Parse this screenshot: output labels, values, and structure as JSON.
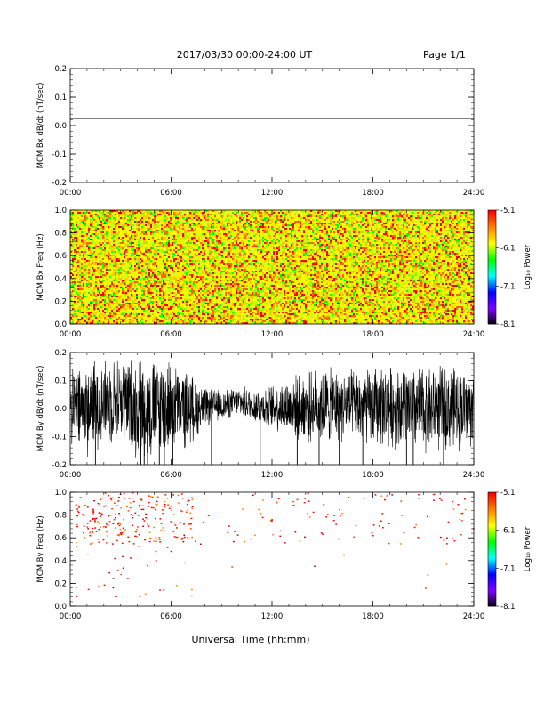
{
  "header": {
    "date_range": "2017/03/30  00:00-24:00 UT",
    "page": "Page 1/1"
  },
  "xlabel": "Universal Time (hh:mm)",
  "x_ticks": [
    "00:00",
    "06:00",
    "12:00",
    "18:00",
    "24:00"
  ],
  "colorbar": {
    "label": "Log₁₀ Power",
    "ticks": [
      "-5.1",
      "-6.1",
      "-7.1",
      "-8.1"
    ],
    "colors": [
      "#ff0000",
      "#ff8000",
      "#ffff00",
      "#00ff00",
      "#00ffff",
      "#0000ff",
      "#8000ff",
      "#000000"
    ]
  },
  "chart_data": [
    {
      "type": "line",
      "ylabel": "MCM Bx dB/dt (nT/sec)",
      "x_range": [
        "00:00",
        "24:00"
      ],
      "ylim": [
        -0.2,
        0.2
      ],
      "y_ticks": [
        "0.2",
        "0.1",
        "0.0",
        "-0.1",
        "-0.2"
      ],
      "series": [
        {
          "x": [
            "00:00",
            "24:00"
          ],
          "y": [
            0.025,
            0.025
          ]
        }
      ]
    },
    {
      "type": "heatmap",
      "ylabel": "MCM Bx Freq (Hz)",
      "x_range": [
        "00:00",
        "24:00"
      ],
      "ylim": [
        0.0,
        1.0
      ],
      "y_ticks": [
        "1.0",
        "0.8",
        "0.6",
        "0.4",
        "0.2",
        "0.0"
      ],
      "zlim": [
        -8.1,
        -5.1
      ],
      "z_typical_range": [
        -5.9,
        -5.1
      ]
    },
    {
      "type": "line",
      "ylabel": "MCM By dB/dt (nT/sec)",
      "x_range": [
        "00:00",
        "24:00"
      ],
      "ylim": [
        -0.2,
        0.2
      ],
      "y_ticks": [
        "0.2",
        "0.1",
        "0.0",
        "-0.1",
        "-0.2"
      ],
      "envelope_hourly": {
        "hours": [
          0,
          1,
          2,
          3,
          4,
          5,
          6,
          7,
          8,
          9,
          10,
          11,
          12,
          13,
          14,
          15,
          16,
          17,
          18,
          19,
          20,
          21,
          22,
          23,
          24
        ],
        "upper": [
          0.14,
          0.19,
          0.19,
          0.2,
          0.2,
          0.2,
          0.2,
          0.15,
          0.08,
          0.07,
          0.08,
          0.08,
          0.09,
          0.12,
          0.14,
          0.16,
          0.15,
          0.15,
          0.16,
          0.17,
          0.16,
          0.17,
          0.17,
          0.16,
          0.15
        ],
        "lower": [
          -0.14,
          -0.19,
          -0.14,
          -0.13,
          -0.2,
          -0.2,
          -0.17,
          -0.15,
          -0.07,
          -0.05,
          -0.03,
          -0.06,
          -0.08,
          -0.11,
          -0.13,
          -0.14,
          -0.13,
          -0.14,
          -0.15,
          -0.15,
          -0.16,
          -0.17,
          -0.17,
          -0.16,
          -0.15
        ]
      }
    },
    {
      "type": "heatmap",
      "ylabel": "MCM By Freq (Hz)",
      "x_range": [
        "00:00",
        "24:00"
      ],
      "ylim": [
        0.0,
        1.0
      ],
      "y_ticks": [
        "1.0",
        "0.8",
        "0.6",
        "0.4",
        "0.2",
        "0.0"
      ],
      "zlim": [
        -8.1,
        -5.1
      ],
      "z_typical_range": [
        -5.6,
        -5.1
      ],
      "note": "sparse red points concentrated 0.55-1.0 Hz, densest 01:00-07:00"
    }
  ]
}
